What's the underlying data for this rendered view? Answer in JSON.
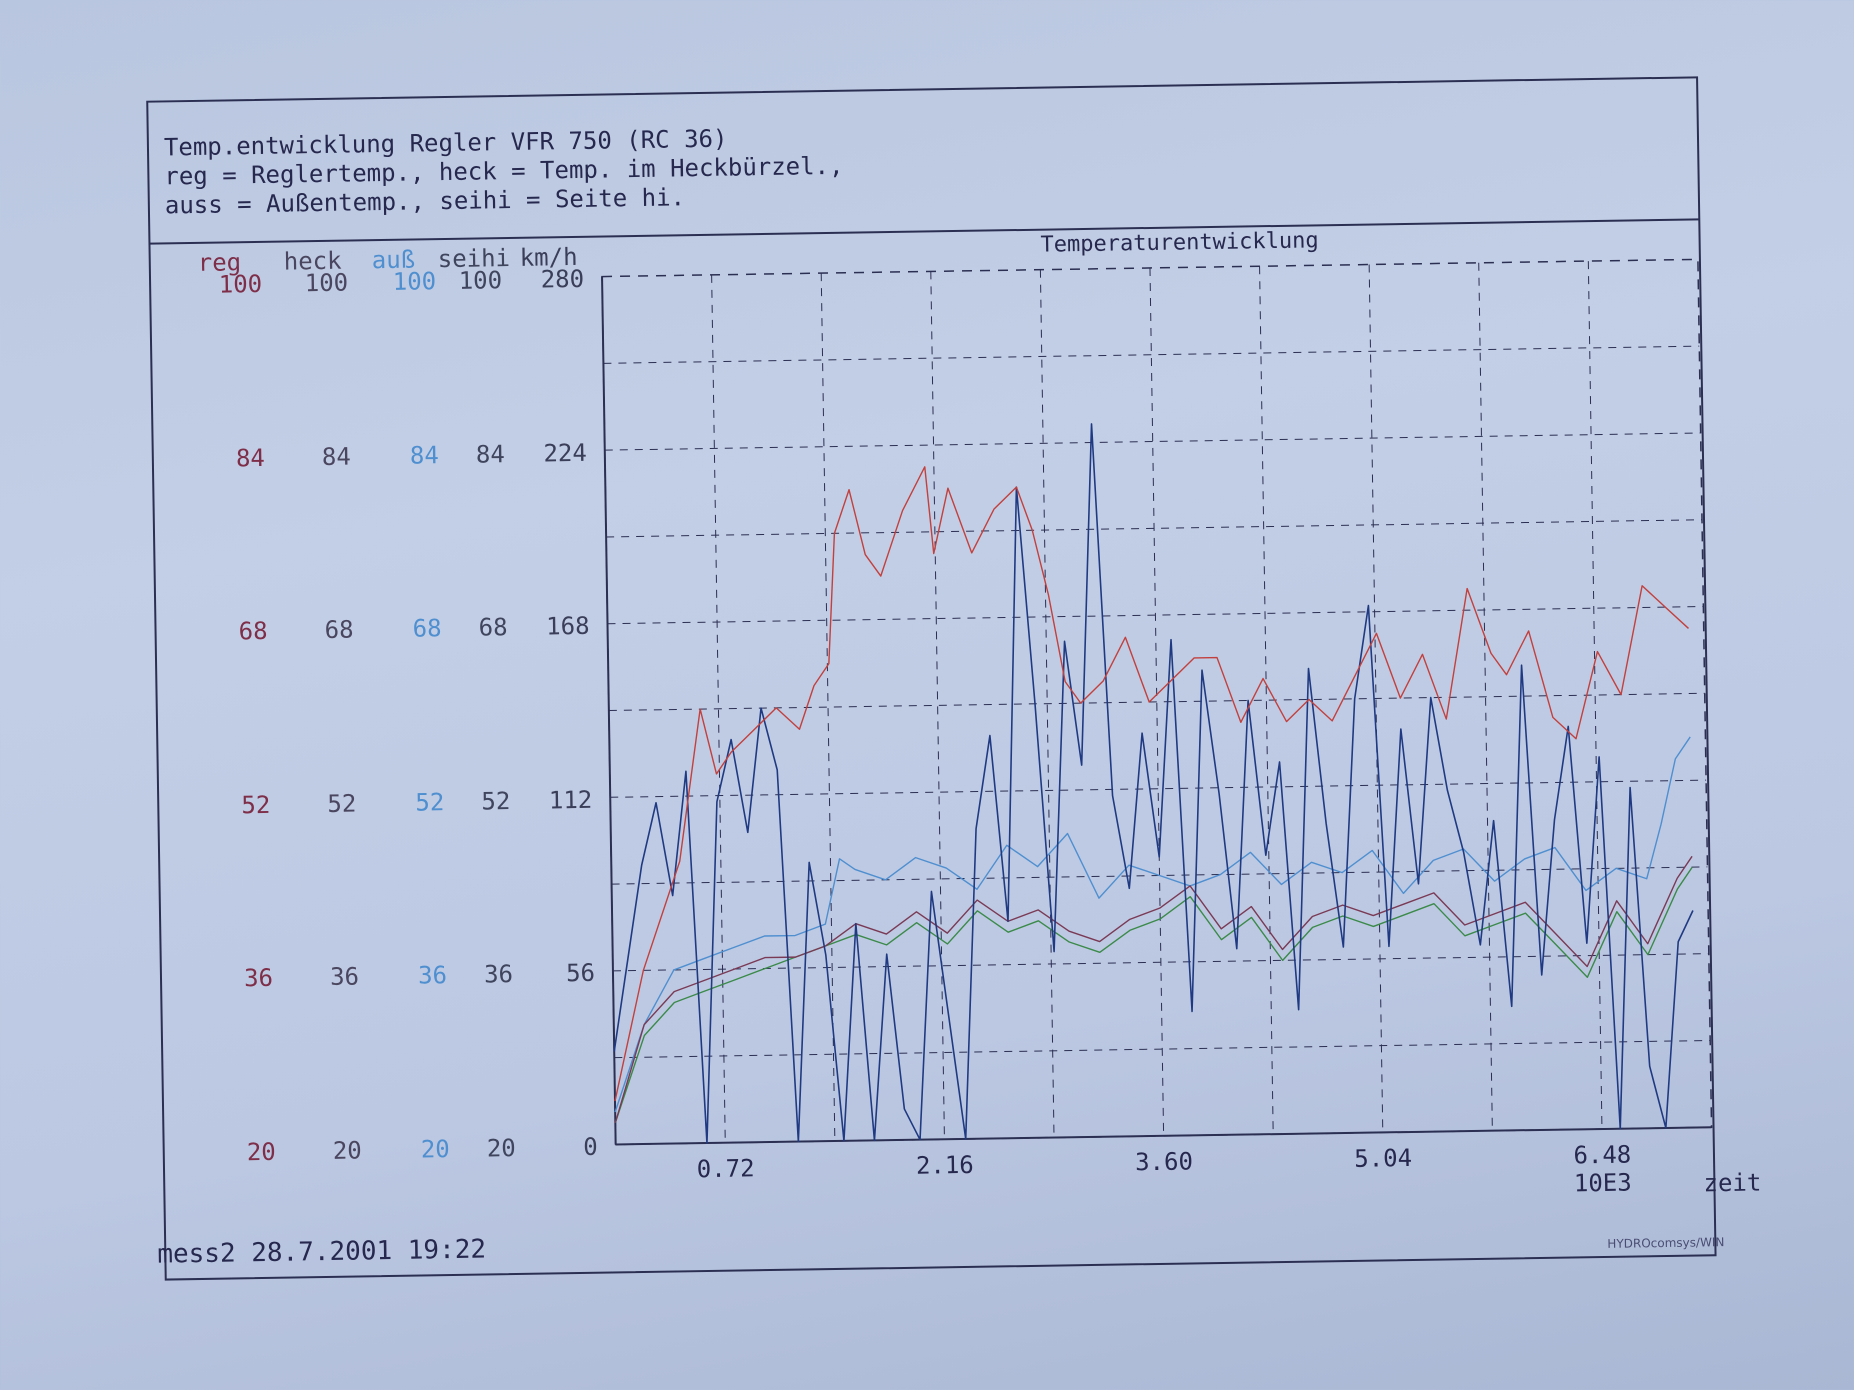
{
  "header": {
    "line1": "Temp.entwicklung Regler VFR 750 (RC 36)",
    "line2": "reg = Reglertemp., heck = Temp. im Heckbürzel.,",
    "line3": "auss = Außentemp., seihi = Seite hi."
  },
  "footer": {
    "left": "mess2 28.7.2001 19:22",
    "right": "HYDROcomsys/WIN"
  },
  "colors": {
    "reg": "#c2403d",
    "heck": "#3b8a4a",
    "auss": "#4f8fd0",
    "seihi": "#7a3a55",
    "kmh": "#1f3a82",
    "grid": "#2b2f52"
  },
  "chart_data": {
    "type": "line",
    "title": "Temperaturentwicklung",
    "xlabel": "zeit",
    "x_unit": "10E3",
    "xlim": [
      0,
      7.2
    ],
    "x_ticks": [
      "0.72",
      "2.16",
      "3.60",
      "5.04",
      "6.48"
    ],
    "grid": true,
    "axes": [
      {
        "name": "reg",
        "ticks": [
          "100",
          "84",
          "68",
          "52",
          "36",
          "20"
        ]
      },
      {
        "name": "heck",
        "ticks": [
          "100",
          "84",
          "68",
          "52",
          "36",
          "20"
        ]
      },
      {
        "name": "auß",
        "ticks": [
          "100",
          "84",
          "68",
          "52",
          "36",
          "20"
        ]
      },
      {
        "name": "seihi",
        "ticks": [
          "100",
          "84",
          "68",
          "52",
          "36",
          "20"
        ]
      },
      {
        "name": "km/h",
        "ticks": [
          "280",
          "224",
          "168",
          "112",
          "56",
          "0"
        ]
      }
    ],
    "series": [
      {
        "name": "reg",
        "axis": "temp",
        "x": [
          0,
          0.2,
          0.45,
          0.6,
          0.7,
          0.8,
          0.95,
          1.1,
          1.25,
          1.35,
          1.45,
          1.5,
          1.6,
          1.7,
          1.8,
          1.95,
          2.1,
          2.15,
          2.25,
          2.4,
          2.55,
          2.7,
          2.8,
          2.9,
          3.0,
          3.1,
          3.25,
          3.4,
          3.55,
          3.7,
          3.85,
          4.0,
          4.15,
          4.3,
          4.45,
          4.6,
          4.75,
          4.9,
          5.05,
          5.2,
          5.35,
          5.5,
          5.65,
          5.8,
          5.9,
          6.05,
          6.2,
          6.35,
          6.5,
          6.65,
          6.8,
          6.95,
          7.1
        ],
        "y": [
          24,
          36,
          46,
          60,
          54,
          56,
          58,
          60,
          58,
          62,
          64,
          76,
          80,
          74,
          72,
          78,
          82,
          74,
          80,
          74,
          78,
          80,
          76,
          70,
          62,
          60,
          62,
          66,
          60,
          62,
          64,
          64,
          58,
          62,
          58,
          60,
          58,
          62,
          66,
          60,
          64,
          58,
          70,
          64,
          62,
          66,
          58,
          56,
          64,
          60,
          70,
          68,
          66
        ]
      },
      {
        "name": "heck",
        "axis": "temp",
        "x": [
          0,
          0.2,
          0.4,
          0.6,
          0.8,
          1.0,
          1.2,
          1.4,
          1.6,
          1.8,
          2.0,
          2.2,
          2.4,
          2.6,
          2.8,
          3.0,
          3.2,
          3.4,
          3.6,
          3.8,
          4.0,
          4.2,
          4.4,
          4.6,
          4.8,
          5.0,
          5.2,
          5.4,
          5.6,
          5.8,
          6.0,
          6.2,
          6.4,
          6.6,
          6.8,
          7.0,
          7.1
        ],
        "y": [
          22,
          30,
          33,
          34,
          35,
          36,
          37,
          38,
          39,
          38,
          40,
          38,
          41,
          39,
          40,
          38,
          37,
          39,
          40,
          42,
          38,
          40,
          36,
          39,
          40,
          39,
          40,
          41,
          38,
          39,
          40,
          37,
          34,
          40,
          36,
          42,
          44
        ]
      },
      {
        "name": "auß",
        "axis": "temp",
        "x": [
          0,
          0.2,
          0.4,
          0.6,
          0.8,
          1.0,
          1.2,
          1.4,
          1.5,
          1.6,
          1.8,
          2.0,
          2.2,
          2.4,
          2.6,
          2.8,
          3.0,
          3.2,
          3.4,
          3.6,
          3.8,
          4.0,
          4.2,
          4.4,
          4.6,
          4.8,
          5.0,
          5.2,
          5.4,
          5.6,
          5.8,
          6.0,
          6.2,
          6.4,
          6.6,
          6.8,
          6.9,
          7.0,
          7.1
        ],
        "y": [
          23,
          31,
          36,
          37,
          38,
          39,
          39,
          40,
          46,
          45,
          44,
          46,
          45,
          43,
          47,
          45,
          48,
          42,
          45,
          44,
          43,
          44,
          46,
          43,
          45,
          44,
          46,
          42,
          45,
          46,
          43,
          45,
          46,
          42,
          44,
          43,
          48,
          54,
          56
        ]
      },
      {
        "name": "seihi",
        "axis": "temp",
        "x": [
          0,
          0.2,
          0.4,
          0.6,
          0.8,
          1.0,
          1.2,
          1.4,
          1.6,
          1.8,
          2.0,
          2.2,
          2.4,
          2.6,
          2.8,
          3.0,
          3.2,
          3.4,
          3.6,
          3.8,
          4.0,
          4.2,
          4.4,
          4.6,
          4.8,
          5.0,
          5.2,
          5.4,
          5.6,
          5.8,
          6.0,
          6.2,
          6.4,
          6.6,
          6.8,
          7.0,
          7.1
        ],
        "y": [
          22,
          31,
          34,
          35,
          36,
          37,
          37,
          38,
          40,
          39,
          41,
          39,
          42,
          40,
          41,
          39,
          38,
          40,
          41,
          43,
          39,
          41,
          37,
          40,
          41,
          40,
          41,
          42,
          39,
          40,
          41,
          38,
          35,
          41,
          37,
          43,
          45
        ]
      },
      {
        "name": "km/h",
        "axis": "speed",
        "x": [
          0,
          0.1,
          0.2,
          0.3,
          0.4,
          0.5,
          0.6,
          0.7,
          0.8,
          0.9,
          1.0,
          1.1,
          1.2,
          1.3,
          1.4,
          1.5,
          1.6,
          1.7,
          1.8,
          1.9,
          2.0,
          2.1,
          2.2,
          2.3,
          2.4,
          2.5,
          2.6,
          2.7,
          2.8,
          2.9,
          3.0,
          3.1,
          3.2,
          3.3,
          3.4,
          3.5,
          3.6,
          3.7,
          3.8,
          3.9,
          4.0,
          4.1,
          4.2,
          4.3,
          4.4,
          4.5,
          4.6,
          4.7,
          4.8,
          4.9,
          5.0,
          5.1,
          5.2,
          5.3,
          5.4,
          5.5,
          5.6,
          5.7,
          5.8,
          5.9,
          6.0,
          6.1,
          6.2,
          6.3,
          6.4,
          6.5,
          6.6,
          6.7,
          6.8,
          6.9,
          7.0,
          7.1
        ],
        "y": [
          30,
          60,
          90,
          110,
          80,
          120,
          0,
          110,
          130,
          100,
          140,
          120,
          0,
          90,
          60,
          0,
          70,
          0,
          60,
          10,
          0,
          80,
          40,
          0,
          100,
          130,
          70,
          210,
          140,
          60,
          160,
          120,
          230,
          110,
          80,
          130,
          90,
          160,
          40,
          150,
          110,
          60,
          140,
          90,
          120,
          40,
          150,
          100,
          60,
          140,
          170,
          60,
          130,
          80,
          140,
          110,
          90,
          60,
          100,
          40,
          150,
          50,
          100,
          130,
          60,
          120,
          0,
          110,
          20,
          0,
          60,
          70
        ]
      }
    ]
  }
}
